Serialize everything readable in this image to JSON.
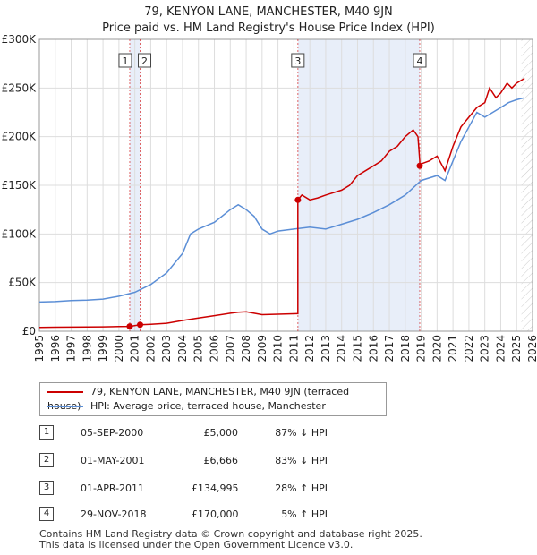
{
  "title": {
    "line1": "79, KENYON LANE, MANCHESTER, M40 9JN",
    "line2": "Price paid vs. HM Land Registry's House Price Index (HPI)"
  },
  "colors": {
    "property": "#cc0000",
    "hpi": "#5b8ed6",
    "shade": "#e8eef9",
    "grid": "#dddddd"
  },
  "chart_data": {
    "type": "line",
    "title": "Price paid vs. HM Land Registry's House Price Index (HPI)",
    "xlim": [
      1995,
      2026
    ],
    "ylim": [
      0,
      300000
    ],
    "x_ticks": [
      1995,
      1996,
      1997,
      1998,
      1999,
      2000,
      2001,
      2002,
      2003,
      2004,
      2005,
      2006,
      2007,
      2008,
      2009,
      2010,
      2011,
      2012,
      2013,
      2014,
      2015,
      2016,
      2017,
      2018,
      2019,
      2020,
      2021,
      2022,
      2023,
      2024,
      2025,
      2026
    ],
    "y_ticks": [
      {
        "value": 0,
        "label": "£0"
      },
      {
        "value": 50000,
        "label": "£50K"
      },
      {
        "value": 100000,
        "label": "£100K"
      },
      {
        "value": 150000,
        "label": "£150K"
      },
      {
        "value": 200000,
        "label": "£200K"
      },
      {
        "value": 250000,
        "label": "£250K"
      },
      {
        "value": 300000,
        "label": "£300K"
      }
    ],
    "shaded_ranges": [
      [
        2000.68,
        2001.33
      ],
      [
        2011.25,
        2018.91
      ]
    ],
    "future_from": 2025.3,
    "series": [
      {
        "name": "79, KENYON LANE, MANCHESTER, M40 9JN (terraced house)",
        "color": "#cc0000",
        "x": [
          1995,
          1996,
          1997,
          1998,
          1999,
          2000,
          2000.68,
          2000.68,
          2001.33,
          2001.33,
          2002,
          2003,
          2004,
          2005,
          2006,
          2007,
          2007.5,
          2008,
          2009,
          2010,
          2011.2,
          2011.25,
          2011.25,
          2011.5,
          2012,
          2012.5,
          2013,
          2014,
          2014.5,
          2015,
          2016,
          2016.5,
          2017,
          2017.5,
          2018,
          2018.5,
          2018.8,
          2018.91,
          2018.91,
          2019,
          2019.5,
          2020,
          2020.5,
          2021,
          2021.5,
          2022,
          2022.5,
          2023,
          2023.3,
          2023.7,
          2024,
          2024.4,
          2024.7,
          2025,
          2025.5
        ],
        "values": [
          4000,
          4100,
          4200,
          4300,
          4500,
          4800,
          5000,
          5000,
          6666,
          6666,
          7200,
          8200,
          11000,
          13500,
          16000,
          18500,
          19500,
          20000,
          17000,
          17500,
          18000,
          18000,
          134995,
          140000,
          135000,
          137000,
          140000,
          145000,
          150000,
          160000,
          170000,
          175000,
          185000,
          190000,
          200000,
          207000,
          200000,
          175000,
          170000,
          172000,
          175000,
          180000,
          165000,
          190000,
          210000,
          220000,
          230000,
          235000,
          250000,
          240000,
          245000,
          255000,
          250000,
          255000,
          260000
        ]
      },
      {
        "name": "HPI: Average price, terraced house, Manchester",
        "color": "#5b8ed6",
        "x": [
          1995,
          1996,
          1997,
          1998,
          1999,
          2000,
          2001,
          2002,
          2003,
          2004,
          2004.5,
          2005,
          2006,
          2007,
          2007.5,
          2008,
          2008.5,
          2009,
          2009.5,
          2010,
          2011,
          2012,
          2013,
          2014,
          2015,
          2016,
          2017,
          2018,
          2019,
          2020,
          2020.5,
          2021,
          2021.5,
          2022,
          2022.5,
          2023,
          2023.5,
          2024,
          2024.5,
          2025,
          2025.5
        ],
        "values": [
          30000,
          30500,
          31500,
          32000,
          33000,
          36000,
          40000,
          48000,
          60000,
          80000,
          100000,
          105000,
          112000,
          125000,
          130000,
          125000,
          118000,
          105000,
          100000,
          103000,
          105000,
          107000,
          105000,
          110000,
          115000,
          122000,
          130000,
          140000,
          155000,
          160000,
          155000,
          175000,
          195000,
          210000,
          225000,
          220000,
          225000,
          230000,
          235000,
          238000,
          240000
        ]
      }
    ],
    "markers": [
      {
        "id": "1",
        "x": 2000.68,
        "y": 5000
      },
      {
        "id": "2",
        "x": 2001.33,
        "y": 6666
      },
      {
        "id": "3",
        "x": 2011.25,
        "y": 134995
      },
      {
        "id": "4",
        "x": 2018.91,
        "y": 170000
      }
    ]
  },
  "legend": {
    "property_label": "79, KENYON LANE, MANCHESTER, M40 9JN (terraced house)",
    "hpi_label": "HPI: Average price, terraced house, Manchester"
  },
  "sales": [
    {
      "num": "1",
      "date": "05-SEP-2000",
      "price": "£5,000",
      "hpi": "87% ↓ HPI"
    },
    {
      "num": "2",
      "date": "01-MAY-2001",
      "price": "£6,666",
      "hpi": "83% ↓ HPI"
    },
    {
      "num": "3",
      "date": "01-APR-2011",
      "price": "£134,995",
      "hpi": "28% ↑ HPI"
    },
    {
      "num": "4",
      "date": "29-NOV-2018",
      "price": "£170,000",
      "hpi": "5% ↑ HPI"
    }
  ],
  "footer": {
    "line1": "Contains HM Land Registry data © Crown copyright and database right 2025.",
    "line2": "This data is licensed under the Open Government Licence v3.0."
  }
}
